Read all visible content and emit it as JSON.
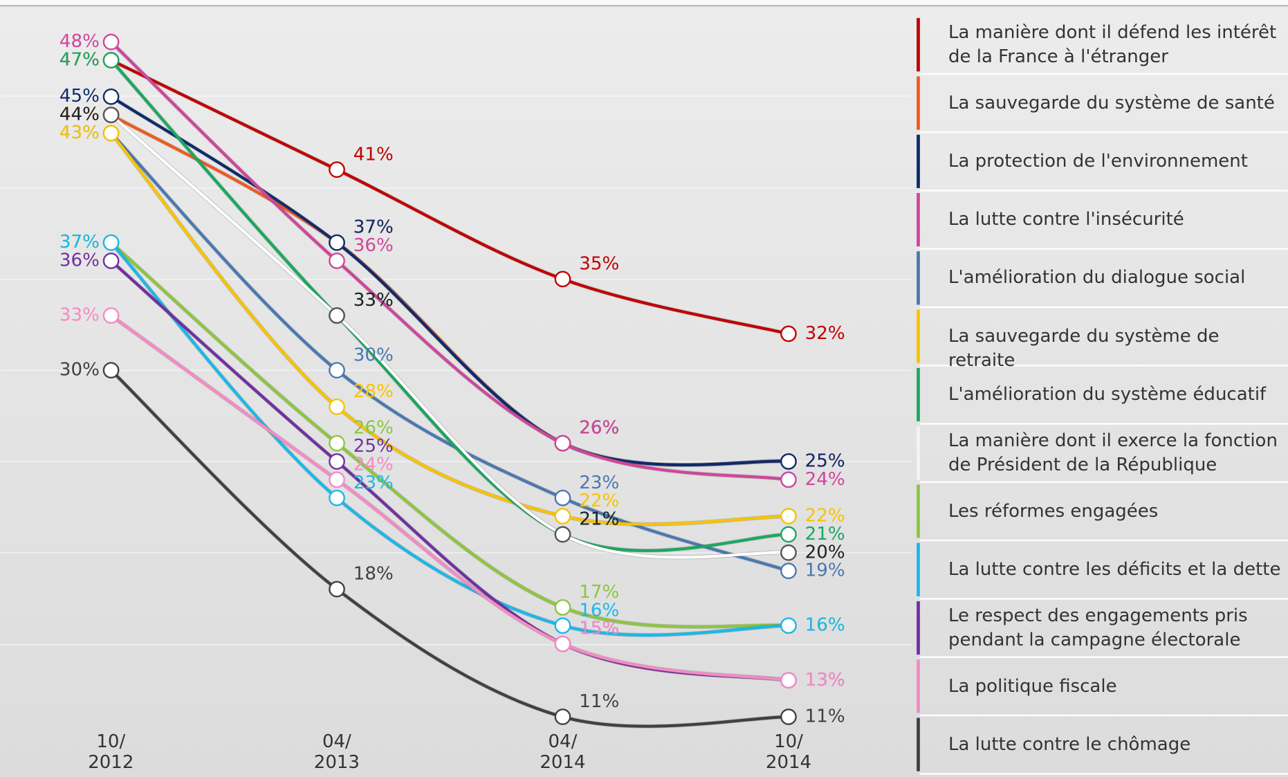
{
  "chart_data": {
    "type": "line",
    "categories": [
      "10/\n2012",
      "04/\n2013",
      "04/\n2014",
      "10/\n2014"
    ],
    "ylim": [
      7.7,
      50.3
    ],
    "legend": "right",
    "series": [
      {
        "name": "La manière dont il défend les intérêt\nde la France à l'étranger",
        "color": "#c00000",
        "values": [
          47,
          41,
          35,
          32
        ],
        "value_labels": [
          "47%",
          "41%",
          "35%",
          "32%"
        ]
      },
      {
        "name": "La sauvegarde du système de santé",
        "color": "#f05a1e",
        "values": [
          44,
          37,
          26,
          25
        ],
        "value_labels": [
          "44%",
          "37%",
          "26%",
          "25%"
        ]
      },
      {
        "name": "La protection de l'environnement",
        "color": "#0e2a6b",
        "values": [
          45,
          37,
          26,
          25
        ],
        "value_labels": [
          "45%",
          "37%",
          "26%",
          "25%"
        ]
      },
      {
        "name": "La lutte contre l'insécurité",
        "color": "#d0459a",
        "values": [
          48,
          36,
          26,
          24
        ],
        "value_labels": [
          "48%",
          "36%",
          "26%",
          "24%"
        ]
      },
      {
        "name": "L'amélioration du dialogue social",
        "color": "#4a78b0",
        "values": [
          43,
          30,
          23,
          19
        ],
        "value_labels": [
          "43%",
          "30%",
          "23%",
          "19%"
        ]
      },
      {
        "name": "La sauvegarde du système de retraite",
        "color": "#f7c300",
        "values": [
          43,
          28,
          22,
          22
        ],
        "value_labels": [
          "43%",
          "28%",
          "22%",
          "22%"
        ]
      },
      {
        "name": "L'amélioration du système éducatif",
        "color": "#1aa860",
        "values": [
          47,
          33,
          21,
          21
        ],
        "value_labels": [
          "47%",
          "33%",
          "21%",
          "21%"
        ]
      },
      {
        "name": "La manière dont il exerce la fonction\n de Président de la République",
        "color": "#ffffff",
        "values": [
          44,
          33,
          21,
          20
        ],
        "value_labels": [
          "44%",
          "33%",
          "21%",
          "20%"
        ]
      },
      {
        "name": "Les réformes engagées",
        "color": "#8cc63f",
        "values": [
          37,
          26,
          17,
          16
        ],
        "value_labels": [
          "37%",
          "26%",
          "17%",
          "16%"
        ]
      },
      {
        "name": "La lutte contre les déficits et la dette",
        "color": "#1ab8e8",
        "values": [
          37,
          23,
          16,
          16
        ],
        "value_labels": [
          "37%",
          "23%",
          "16%",
          "16%"
        ]
      },
      {
        "name": "Le respect des engagements pris\n pendant la campagne électorale",
        "color": "#7030a0",
        "values": [
          36,
          25,
          15,
          13
        ],
        "value_labels": [
          "36%",
          "25%",
          "15%",
          "13%"
        ]
      },
      {
        "name": "La politique fiscale",
        "color": "#f58ac4",
        "values": [
          33,
          24,
          15,
          13
        ],
        "value_labels": [
          "33%",
          "24%",
          "15%",
          "13%"
        ]
      },
      {
        "name": "La lutte contre le chômage",
        "color": "#404040",
        "values": [
          30,
          18,
          11,
          11
        ],
        "value_labels": [
          "30%",
          "18%",
          "11%",
          "11%"
        ]
      }
    ]
  }
}
